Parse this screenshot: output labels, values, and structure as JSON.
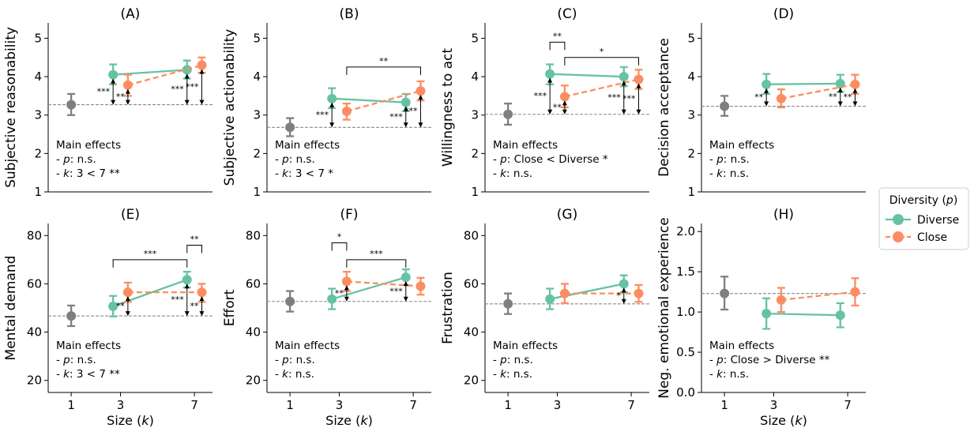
{
  "colors": {
    "Diverse": "#66c2a5",
    "Close": "#fc8d62",
    "baseline": "#7f7f7f"
  },
  "legend": {
    "title_prefix": "Diversity (",
    "title_var": "p",
    "title_suffix": ")",
    "items": [
      {
        "name": "Diverse",
        "label": "Diverse"
      },
      {
        "name": "Close",
        "label": "Close"
      }
    ]
  },
  "chart_data": [
    {
      "type": "line",
      "title": "(A)",
      "ylabel": "Subjective reasonability",
      "xlabel": "",
      "ylim": [
        1,
        5.4
      ],
      "yticks": [
        1,
        2,
        3,
        4,
        5
      ],
      "xticks": [],
      "baseline": {
        "x": 1,
        "y": 3.27,
        "lo": 3.0,
        "hi": 3.55
      },
      "series": [
        {
          "name": "Diverse",
          "x": [
            3,
            7
          ],
          "y": [
            4.05,
            4.18
          ],
          "lo": [
            3.8,
            3.95
          ],
          "hi": [
            4.32,
            4.42
          ]
        },
        {
          "name": "Close",
          "x": [
            3,
            7
          ],
          "y": [
            3.78,
            4.3
          ],
          "lo": [
            3.5,
            4.1
          ],
          "hi": [
            4.05,
            4.5
          ]
        }
      ],
      "brackets": [],
      "arrows": [
        {
          "series": "Diverse",
          "x": 3,
          "label": "***"
        },
        {
          "series": "Close",
          "x": 3,
          "label": "**"
        },
        {
          "series": "Diverse",
          "x": 7,
          "label": "***"
        },
        {
          "series": "Close",
          "x": 7,
          "label": "***"
        }
      ],
      "effects": [
        {
          "text": "Main effects"
        },
        {
          "pre": "- ",
          "var": "p",
          "rest": ": n.s."
        },
        {
          "pre": "- ",
          "var": "k",
          "rest": ": 3 < 7 **"
        }
      ]
    },
    {
      "type": "line",
      "title": "(B)",
      "ylabel": "Subjective actionability",
      "xlabel": "",
      "ylim": [
        1,
        5.4
      ],
      "yticks": [
        1,
        2,
        3,
        4,
        5
      ],
      "xticks": [],
      "baseline": {
        "x": 1,
        "y": 2.68,
        "lo": 2.45,
        "hi": 2.92
      },
      "series": [
        {
          "name": "Diverse",
          "x": [
            3,
            7
          ],
          "y": [
            3.43,
            3.33
          ],
          "lo": [
            3.18,
            3.1
          ],
          "hi": [
            3.7,
            3.55
          ]
        },
        {
          "name": "Close",
          "x": [
            3,
            7
          ],
          "y": [
            3.1,
            3.63
          ],
          "lo": [
            2.88,
            3.38
          ],
          "hi": [
            3.3,
            3.88
          ]
        }
      ],
      "brackets": [
        {
          "from": [
            "Close",
            3
          ],
          "to": [
            "Close",
            7
          ],
          "level": 4.25,
          "label": "**"
        }
      ],
      "arrows": [
        {
          "series": "Diverse",
          "x": 3,
          "label": "***"
        },
        {
          "series": "Diverse",
          "x": 7,
          "label": "***"
        },
        {
          "series": "Close",
          "x": 7,
          "label": "***"
        }
      ],
      "effects": [
        {
          "text": "Main effects"
        },
        {
          "pre": "- ",
          "var": "p",
          "rest": ": n.s."
        },
        {
          "pre": "- ",
          "var": "k",
          "rest": ": 3 < 7 *"
        }
      ]
    },
    {
      "type": "line",
      "title": "(C)",
      "ylabel": "Willingness to act",
      "xlabel": "",
      "ylim": [
        1,
        5.4
      ],
      "yticks": [
        1,
        2,
        3,
        4,
        5
      ],
      "xticks": [],
      "baseline": {
        "x": 1,
        "y": 3.02,
        "lo": 2.75,
        "hi": 3.3
      },
      "series": [
        {
          "name": "Diverse",
          "x": [
            3,
            7
          ],
          "y": [
            4.07,
            4.0
          ],
          "lo": [
            3.8,
            3.75
          ],
          "hi": [
            4.32,
            4.25
          ]
        },
        {
          "name": "Close",
          "x": [
            3,
            7
          ],
          "y": [
            3.48,
            3.93
          ],
          "lo": [
            3.2,
            3.68
          ],
          "hi": [
            3.77,
            4.18
          ]
        }
      ],
      "brackets": [
        {
          "from": [
            "Diverse",
            3
          ],
          "to": [
            "Close",
            3
          ],
          "level": 4.9,
          "label": "**"
        },
        {
          "from": [
            "Close",
            3
          ],
          "to": [
            "Close",
            7
          ],
          "level": 4.5,
          "label": "*"
        }
      ],
      "arrows": [
        {
          "series": "Diverse",
          "x": 3,
          "label": "***"
        },
        {
          "series": "Close",
          "x": 3,
          "label": "**"
        },
        {
          "series": "Diverse",
          "x": 7,
          "label": "***"
        },
        {
          "series": "Close",
          "x": 7,
          "label": "***"
        }
      ],
      "effects": [
        {
          "text": "Main effects"
        },
        {
          "pre": "- ",
          "var": "p",
          "rest": ": Close < Diverse *"
        },
        {
          "pre": "- ",
          "var": "k",
          "rest": ": n.s."
        }
      ]
    },
    {
      "type": "line",
      "title": "(D)",
      "ylabel": "Decision acceptance",
      "xlabel": "",
      "ylim": [
        1,
        5.4
      ],
      "yticks": [
        1,
        2,
        3,
        4,
        5
      ],
      "xticks": [],
      "baseline": {
        "x": 1,
        "y": 3.23,
        "lo": 2.98,
        "hi": 3.5
      },
      "series": [
        {
          "name": "Diverse",
          "x": [
            3,
            7
          ],
          "y": [
            3.8,
            3.82
          ],
          "lo": [
            3.55,
            3.6
          ],
          "hi": [
            4.07,
            4.05
          ]
        },
        {
          "name": "Close",
          "x": [
            3,
            7
          ],
          "y": [
            3.43,
            3.8
          ],
          "lo": [
            3.2,
            3.55
          ],
          "hi": [
            3.67,
            4.05
          ]
        }
      ],
      "brackets": [],
      "arrows": [
        {
          "series": "Diverse",
          "x": 3,
          "label": "**"
        },
        {
          "series": "Diverse",
          "x": 7,
          "label": "**"
        },
        {
          "series": "Close",
          "x": 7,
          "label": "**"
        }
      ],
      "effects": [
        {
          "text": "Main effects"
        },
        {
          "pre": "- ",
          "var": "p",
          "rest": ": n.s."
        },
        {
          "pre": "- ",
          "var": "k",
          "rest": ": n.s."
        }
      ]
    },
    {
      "type": "line",
      "title": "(E)",
      "ylabel": "Mental demand",
      "xlabel": "Size (k)",
      "ylim": [
        15,
        85
      ],
      "yticks": [
        20,
        40,
        60,
        80
      ],
      "xticks": [
        1,
        3,
        7
      ],
      "baseline": {
        "x": 1,
        "y": 46.7,
        "lo": 42.5,
        "hi": 51.0
      },
      "series": [
        {
          "name": "Diverse",
          "x": [
            3,
            7
          ],
          "y": [
            50.7,
            61.7
          ],
          "lo": [
            46.5,
            58.5
          ],
          "hi": [
            55.0,
            65.0
          ]
        },
        {
          "name": "Close",
          "x": [
            3,
            7
          ],
          "y": [
            56.5,
            56.5
          ],
          "lo": [
            52.5,
            52.5
          ],
          "hi": [
            60.5,
            60.0
          ]
        }
      ],
      "brackets": [
        {
          "from": [
            "Diverse",
            3
          ],
          "to": [
            "Diverse",
            7
          ],
          "level": 70,
          "label": "***"
        },
        {
          "from": [
            "Diverse",
            7
          ],
          "to": [
            "Close",
            7
          ],
          "level": 76,
          "label": "**"
        }
      ],
      "arrows": [
        {
          "series": "Close",
          "x": 3,
          "label": "**"
        },
        {
          "series": "Diverse",
          "x": 7,
          "label": "***"
        },
        {
          "series": "Close",
          "x": 7,
          "label": "**"
        }
      ],
      "effects": [
        {
          "text": "Main effects"
        },
        {
          "pre": "- ",
          "var": "p",
          "rest": ": n.s."
        },
        {
          "pre": "- ",
          "var": "k",
          "rest": ": 3 < 7 **"
        }
      ]
    },
    {
      "type": "line",
      "title": "(F)",
      "ylabel": "Effort",
      "xlabel": "Size (k)",
      "ylim": [
        15,
        85
      ],
      "yticks": [
        20,
        40,
        60,
        80
      ],
      "xticks": [
        1,
        3,
        7
      ],
      "baseline": {
        "x": 1,
        "y": 52.7,
        "lo": 48.5,
        "hi": 57.0
      },
      "series": [
        {
          "name": "Diverse",
          "x": [
            3,
            7
          ],
          "y": [
            53.7,
            62.7
          ],
          "lo": [
            49.5,
            59.5
          ],
          "hi": [
            58.0,
            66.0
          ]
        },
        {
          "name": "Close",
          "x": [
            3,
            7
          ],
          "y": [
            61.0,
            59.0
          ],
          "lo": [
            57.0,
            55.5
          ],
          "hi": [
            65.0,
            62.5
          ]
        }
      ],
      "brackets": [
        {
          "from": [
            "Diverse",
            3
          ],
          "to": [
            "Close",
            3
          ],
          "level": 77,
          "label": "*"
        },
        {
          "from": [
            "Close",
            3
          ],
          "to": [
            "Diverse",
            7
          ],
          "level": 70,
          "label": "***"
        }
      ],
      "arrows": [
        {
          "series": "Close",
          "x": 3,
          "label": "**"
        },
        {
          "series": "Diverse",
          "x": 7,
          "label": "***"
        }
      ],
      "effects": [
        {
          "text": "Main effects"
        },
        {
          "pre": "- ",
          "var": "p",
          "rest": ": n.s."
        },
        {
          "pre": "- ",
          "var": "k",
          "rest": ": n.s."
        }
      ]
    },
    {
      "type": "line",
      "title": "(G)",
      "ylabel": "Frustration",
      "xlabel": "",
      "ylim": [
        15,
        85
      ],
      "yticks": [
        20,
        40,
        60,
        80
      ],
      "xticks": [
        1,
        3,
        7
      ],
      "baseline": {
        "x": 1,
        "y": 51.7,
        "lo": 47.5,
        "hi": 56.0
      },
      "series": [
        {
          "name": "Diverse",
          "x": [
            3,
            7
          ],
          "y": [
            53.7,
            60.0
          ],
          "lo": [
            49.5,
            56.5
          ],
          "hi": [
            58.0,
            63.5
          ]
        },
        {
          "name": "Close",
          "x": [
            3,
            7
          ],
          "y": [
            56.0,
            56.0
          ],
          "lo": [
            52.0,
            52.5
          ],
          "hi": [
            60.0,
            59.5
          ]
        }
      ],
      "brackets": [],
      "arrows": [
        {
          "series": "Diverse",
          "x": 7,
          "label": "*"
        }
      ],
      "effects": [
        {
          "text": "Main effects"
        },
        {
          "pre": "- ",
          "var": "p",
          "rest": ": n.s."
        },
        {
          "pre": "- ",
          "var": "k",
          "rest": ": n.s."
        }
      ]
    },
    {
      "type": "line",
      "title": "(H)",
      "ylabel": "Neg. emotional experience",
      "xlabel": "Size (k)",
      "ylim": [
        0,
        2.1
      ],
      "yticks": [
        0.0,
        0.5,
        1.0,
        1.5,
        2.0
      ],
      "ytick_labels": [
        "0.0",
        "0.5",
        "1.0",
        "1.5",
        "2.0"
      ],
      "xticks": [
        1,
        3,
        7
      ],
      "baseline": {
        "x": 1,
        "y": 1.23,
        "lo": 1.03,
        "hi": 1.44
      },
      "series": [
        {
          "name": "Diverse",
          "x": [
            3,
            7
          ],
          "y": [
            0.98,
            0.96
          ],
          "lo": [
            0.79,
            0.81
          ],
          "hi": [
            1.17,
            1.11
          ]
        },
        {
          "name": "Close",
          "x": [
            3,
            7
          ],
          "y": [
            1.15,
            1.25
          ],
          "lo": [
            1.0,
            1.08
          ],
          "hi": [
            1.3,
            1.42
          ]
        }
      ],
      "brackets": [],
      "arrows": [],
      "effects": [
        {
          "text": "Main effects"
        },
        {
          "pre": "- ",
          "var": "p",
          "rest": ": Close > Diverse **"
        },
        {
          "pre": "- ",
          "var": "k",
          "rest": ": n.s."
        }
      ]
    }
  ]
}
